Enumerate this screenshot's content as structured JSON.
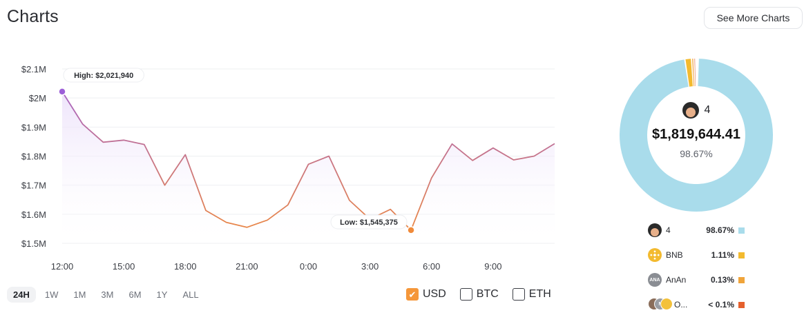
{
  "header": {
    "title": "Charts",
    "more_button": "See More Charts"
  },
  "chart_data": {
    "type": "line",
    "x_labels": [
      "12:00",
      "15:00",
      "18:00",
      "21:00",
      "0:00",
      "3:00",
      "6:00",
      "9:00"
    ],
    "y_ticks": [
      {
        "value": 1500000,
        "label": "$1.5M"
      },
      {
        "value": 1600000,
        "label": "$1.6M"
      },
      {
        "value": 1700000,
        "label": "$1.7M"
      },
      {
        "value": 1800000,
        "label": "$1.8M"
      },
      {
        "value": 1900000,
        "label": "$1.9M"
      },
      {
        "value": 2000000,
        "label": "$2M"
      },
      {
        "value": 2100000,
        "label": "$2.1M"
      }
    ],
    "ylim": [
      1500000,
      2100000
    ],
    "values": [
      2021940,
      1910000,
      1848000,
      1855000,
      1840000,
      1700000,
      1805000,
      1613000,
      1572000,
      1555000,
      1580000,
      1632000,
      1772000,
      1800000,
      1648000,
      1583000,
      1617000,
      1545375,
      1725000,
      1842000,
      1785000,
      1828000,
      1787000,
      1800000,
      1843000
    ],
    "high": {
      "index": 0,
      "label": "High: $2,021,940"
    },
    "low": {
      "index": 17,
      "label": "Low: $1,545,375"
    },
    "colors": {
      "high": "#9d5fd8",
      "low": "#f08a3a",
      "fill": "#efe6fb"
    },
    "grid": true
  },
  "range_tabs": [
    {
      "label": "24H",
      "active": true
    },
    {
      "label": "1W"
    },
    {
      "label": "1M"
    },
    {
      "label": "3M"
    },
    {
      "label": "6M"
    },
    {
      "label": "1Y"
    },
    {
      "label": "ALL"
    }
  ],
  "currencies": [
    {
      "label": "USD",
      "checked": true
    },
    {
      "label": "BTC",
      "checked": false
    },
    {
      "label": "ETH",
      "checked": false
    }
  ],
  "donut": {
    "center_name": "4",
    "center_value": "$1,819,644.41",
    "center_pct": "98.67%",
    "slices": [
      {
        "name": "4",
        "value": 98.67,
        "color": "#a9dceb"
      },
      {
        "name": "BNB",
        "value": 1.11,
        "color": "#f3ba2f"
      },
      {
        "name": "AnAn",
        "value": 0.13,
        "color": "#f0a43a"
      },
      {
        "name": "Others",
        "value": 0.09,
        "color": "#e5602d"
      }
    ]
  },
  "legend": [
    {
      "name": "4",
      "pct": "98.67%",
      "color": "#a9dceb",
      "icon": "avatar-icon"
    },
    {
      "name": "BNB",
      "pct": "1.11%",
      "color": "#f3ba2f",
      "icon": "bnb-logo-icon"
    },
    {
      "name": "AnAn",
      "pct": "0.13%",
      "color": "#f0a43a",
      "icon": "anan-logo-icon",
      "icon_text": "ANA"
    },
    {
      "name": "O...",
      "pct": "< 0.1%",
      "color": "#e5602d",
      "icon": "multi-token-icon",
      "icon_text": "N"
    }
  ]
}
